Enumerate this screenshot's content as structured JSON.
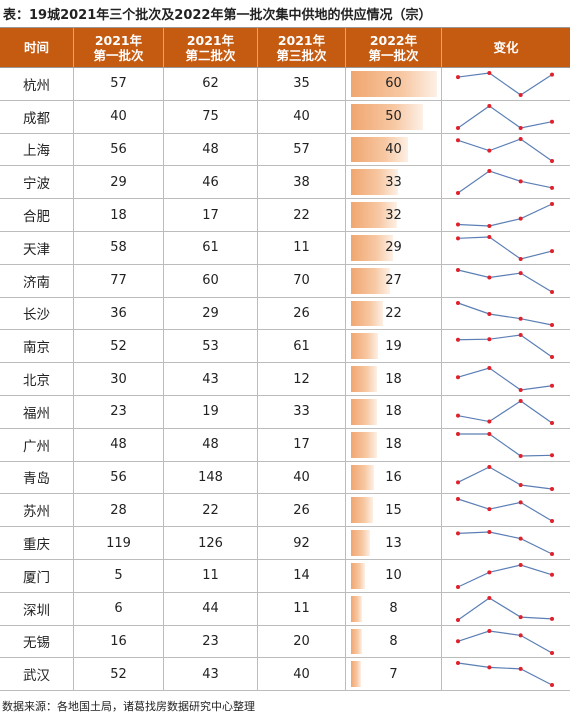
{
  "title": "表：19城2021年三个批次及2022年第一批次集中供地的供应情况（宗）",
  "headers": {
    "city": "时间",
    "b1": [
      "2021年",
      "第一批次"
    ],
    "b2": [
      "2021年",
      "第二批次"
    ],
    "b3": [
      "2021年",
      "第三批次"
    ],
    "b4": [
      "2022年",
      "第一批次"
    ],
    "trend": "变化"
  },
  "rows": [
    {
      "city": "杭州",
      "b1": 57,
      "b2": 62,
      "b3": 35,
      "b4": 60
    },
    {
      "city": "成都",
      "b1": 40,
      "b2": 75,
      "b3": 40,
      "b4": 50
    },
    {
      "city": "上海",
      "b1": 56,
      "b2": 48,
      "b3": 57,
      "b4": 40
    },
    {
      "city": "宁波",
      "b1": 29,
      "b2": 46,
      "b3": 38,
      "b4": 33
    },
    {
      "city": "合肥",
      "b1": 18,
      "b2": 17,
      "b3": 22,
      "b4": 32
    },
    {
      "city": "天津",
      "b1": 58,
      "b2": 61,
      "b3": 11,
      "b4": 29
    },
    {
      "city": "济南",
      "b1": 77,
      "b2": 60,
      "b3": 70,
      "b4": 27
    },
    {
      "city": "长沙",
      "b1": 36,
      "b2": 29,
      "b3": 26,
      "b4": 22
    },
    {
      "city": "南京",
      "b1": 52,
      "b2": 53,
      "b3": 61,
      "b4": 19
    },
    {
      "city": "北京",
      "b1": 30,
      "b2": 43,
      "b3": 12,
      "b4": 18
    },
    {
      "city": "福州",
      "b1": 23,
      "b2": 19,
      "b3": 33,
      "b4": 18
    },
    {
      "city": "广州",
      "b1": 48,
      "b2": 48,
      "b3": 17,
      "b4": 18
    },
    {
      "city": "青岛",
      "b1": 56,
      "b2": 148,
      "b3": 40,
      "b4": 16
    },
    {
      "city": "苏州",
      "b1": 28,
      "b2": 22,
      "b3": 26,
      "b4": 15
    },
    {
      "city": "重庆",
      "b1": 119,
      "b2": 126,
      "b3": 92,
      "b4": 13
    },
    {
      "city": "厦门",
      "b1": 5,
      "b2": 11,
      "b3": 14,
      "b4": 10
    },
    {
      "city": "深圳",
      "b1": 6,
      "b2": 44,
      "b3": 11,
      "b4": 8
    },
    {
      "city": "无锡",
      "b1": 16,
      "b2": 23,
      "b3": 20,
      "b4": 8
    },
    {
      "city": "武汉",
      "b1": 52,
      "b2": 43,
      "b3": 40,
      "b4": 7
    }
  ],
  "colors": {
    "header_bg": "#c55a11",
    "bar": "#f0a670",
    "spark_line": "#5b7fb5",
    "spark_dot": "#e0202a"
  },
  "source": "数据来源：各地国土局，诸葛找房数据研究中心整理"
}
